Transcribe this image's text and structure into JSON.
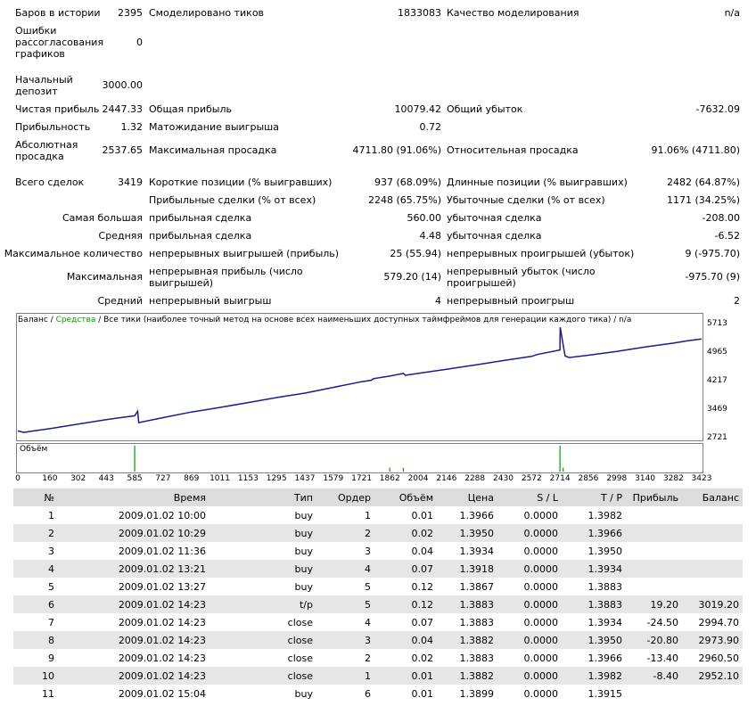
{
  "summary": {
    "bars_label": "Баров в истории",
    "bars_value": "2395",
    "ticks_label": "Смоделировано тиков",
    "ticks_value": "1833083",
    "quality_label": "Качество моделирования",
    "quality_value": "n/a",
    "mismatch_label": "Ошибки рассогласования графиков",
    "mismatch_value": "0",
    "deposit_label": "Начальный депозит",
    "deposit_value": "3000.00",
    "net_profit_label": "Чистая прибыль",
    "net_profit_value": "2447.33",
    "gross_profit_label": "Общая прибыль",
    "gross_profit_value": "10079.42",
    "gross_loss_label": "Общий убыток",
    "gross_loss_value": "-7632.09",
    "pf_label": "Прибыльность",
    "pf_value": "1.32",
    "expect_label": "Матожидание выигрыша",
    "expect_value": "0.72",
    "abs_dd_label": "Абсолютная просадка",
    "abs_dd_value": "2537.65",
    "max_dd_label": "Максимальная просадка",
    "max_dd_value": "4711.80 (91.06%)",
    "rel_dd_label": "Относительная просадка",
    "rel_dd_value": "91.06% (4711.80)",
    "total_label": "Всего сделок",
    "total_value": "3419",
    "short_label": "Короткие позиции (% выигравших)",
    "short_value": "937 (68.09%)",
    "long_label": "Длинные позиции (% выигравших)",
    "long_value": "2482 (64.87%)",
    "profit_trades_label": "Прибыльные сделки (% от всех)",
    "profit_trades_value": "2248 (65.75%)",
    "loss_trades_label": "Убыточные сделки (% от всех)",
    "loss_trades_value": "1171 (34.25%)",
    "largest_label": "Самая большая",
    "largest_profit_label": "прибыльная сделка",
    "largest_profit_value": "560.00",
    "largest_loss_label": "убыточная сделка",
    "largest_loss_value": "-208.00",
    "avg_label": "Средняя",
    "avg_profit_label": "прибыльная сделка",
    "avg_profit_value": "4.48",
    "avg_loss_label": "убыточная сделка",
    "avg_loss_value": "-6.52",
    "maxcnt_label": "Максимальное количество",
    "maxcnt_win_label": "непрерывных выигрышей (прибыль)",
    "maxcnt_win_value": "25 (55.94)",
    "maxcnt_loss_label": "непрерывных проигрышей (убыток)",
    "maxcnt_loss_value": "9 (-975.70)",
    "max_label": "Максимальная",
    "max_win_label": "непрерывная прибыль (число выигрышей)",
    "max_win_value": "579.20 (14)",
    "max_loss_label": "непрерывный убыток (число проигрышей)",
    "max_loss_value": "-975.70 (9)",
    "avgc_label": "Средний",
    "avgc_win_label": "непрерывный выигрыш",
    "avgc_win_value": "4",
    "avgc_loss_label": "непрерывный проигрыш",
    "avgc_loss_value": "2"
  },
  "chart_data": {
    "type": "line",
    "legend_balance": "Баланс",
    "legend_sep": " / ",
    "legend_equity": "Средства",
    "legend_rest": " / Все тики (наиболее точный метод на основе всех наименьших доступных таймфреймов для генерации каждого тика) / n/a",
    "volume_label": "Объём",
    "y_ticks": [
      "5713",
      "4965",
      "4217",
      "3469",
      "2721"
    ],
    "x_ticks": [
      "0",
      "160",
      "302",
      "443",
      "585",
      "727",
      "869",
      "1011",
      "1153",
      "1295",
      "1437",
      "1579",
      "1721",
      "1862",
      "2004",
      "2146",
      "2288",
      "2430",
      "2572",
      "2714",
      "2856",
      "2998",
      "3140",
      "3282",
      "3423"
    ],
    "ylim": [
      2721,
      5713
    ],
    "xlim": [
      0,
      3423
    ],
    "series": [
      {
        "values_x": [
          0,
          30,
          80,
          160,
          302,
          443,
          585,
          600,
          605,
          727,
          869,
          1011,
          1153,
          1295,
          1437,
          1579,
          1721,
          1770,
          1780,
          1862,
          1930,
          1940,
          2004,
          2146,
          2288,
          2430,
          2572,
          2600,
          2714,
          2715,
          2735,
          2740,
          2760,
          2856,
          2998,
          3140,
          3282,
          3350,
          3423
        ],
        "values_y": [
          2900,
          2860,
          2900,
          2960,
          3080,
          3200,
          3300,
          3420,
          3120,
          3250,
          3400,
          3520,
          3650,
          3780,
          3900,
          4050,
          4200,
          4240,
          4280,
          4350,
          4420,
          4370,
          4420,
          4530,
          4640,
          4760,
          4870,
          4920,
          5040,
          5640,
          5020,
          4880,
          4840,
          4900,
          5000,
          5120,
          5220,
          5280,
          5330
        ]
      }
    ],
    "volume_spikes_x": [
      585,
      1862,
      1930,
      2714,
      2730
    ],
    "volume_spike_level": [
      1.0,
      0.15,
      0.15,
      1.0,
      0.15
    ]
  },
  "trades": {
    "headers": [
      "№",
      "Время",
      "Тип",
      "Ордер",
      "Объём",
      "Цена",
      "S / L",
      "T / P",
      "Прибыль",
      "Баланс"
    ],
    "rows": [
      [
        "1",
        "2009.01.02 10:00",
        "buy",
        "1",
        "0.01",
        "1.3966",
        "0.0000",
        "1.3982",
        "",
        ""
      ],
      [
        "2",
        "2009.01.02 10:29",
        "buy",
        "2",
        "0.02",
        "1.3950",
        "0.0000",
        "1.3966",
        "",
        ""
      ],
      [
        "3",
        "2009.01.02 11:36",
        "buy",
        "3",
        "0.04",
        "1.3934",
        "0.0000",
        "1.3950",
        "",
        ""
      ],
      [
        "4",
        "2009.01.02 13:21",
        "buy",
        "4",
        "0.07",
        "1.3918",
        "0.0000",
        "1.3934",
        "",
        ""
      ],
      [
        "5",
        "2009.01.02 13:27",
        "buy",
        "5",
        "0.12",
        "1.3867",
        "0.0000",
        "1.3883",
        "",
        ""
      ],
      [
        "6",
        "2009.01.02 14:23",
        "t/p",
        "5",
        "0.12",
        "1.3883",
        "0.0000",
        "1.3883",
        "19.20",
        "3019.20"
      ],
      [
        "7",
        "2009.01.02 14:23",
        "close",
        "4",
        "0.07",
        "1.3883",
        "0.0000",
        "1.3934",
        "-24.50",
        "2994.70"
      ],
      [
        "8",
        "2009.01.02 14:23",
        "close",
        "3",
        "0.04",
        "1.3882",
        "0.0000",
        "1.3950",
        "-20.80",
        "2973.90"
      ],
      [
        "9",
        "2009.01.02 14:23",
        "close",
        "2",
        "0.02",
        "1.3883",
        "0.0000",
        "1.3966",
        "-13.40",
        "2960.50"
      ],
      [
        "10",
        "2009.01.02 14:23",
        "close",
        "1",
        "0.01",
        "1.3882",
        "0.0000",
        "1.3982",
        "-8.40",
        "2952.10"
      ],
      [
        "11",
        "2009.01.02 15:04",
        "buy",
        "6",
        "0.01",
        "1.3899",
        "0.0000",
        "1.3915",
        "",
        ""
      ]
    ]
  },
  "colors": {
    "balance_line": "#1c1c8c",
    "equity_text": "#00a000",
    "volume_bar": "#00a000",
    "header_bg": "#dcdcdc",
    "stripe_bg": "#e6e6e6"
  }
}
